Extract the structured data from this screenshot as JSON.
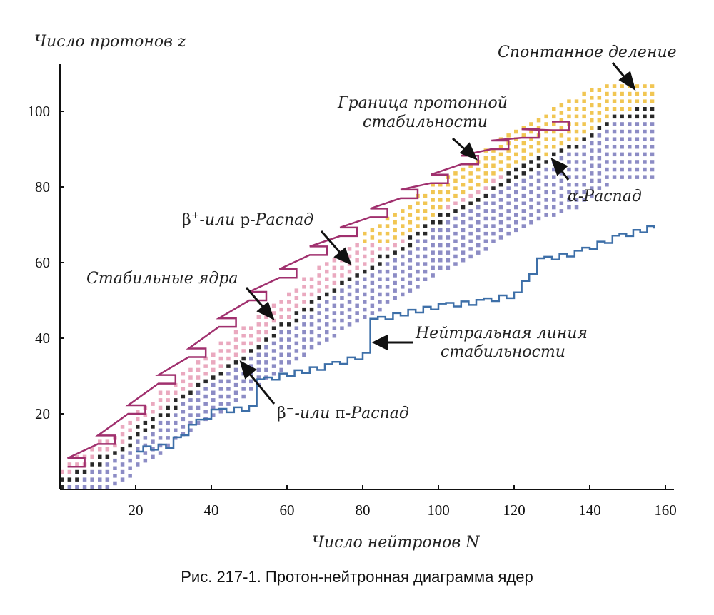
{
  "chart_data": {
    "type": "scatter",
    "title": "",
    "xlabel": "Число нейтронов N",
    "ylabel": "Число протонов z",
    "xlim": [
      0,
      160
    ],
    "ylim": [
      0,
      110
    ],
    "x_ticks": [
      "20",
      "40",
      "60",
      "80",
      "100",
      "120",
      "140",
      "160"
    ],
    "y_ticks": [
      "20",
      "40",
      "60",
      "80",
      "100"
    ],
    "grid": false,
    "colors": {
      "stable": "#111111",
      "beta_plus": "#e8a0b8",
      "beta_minus": "#7f7fbf",
      "alpha": "#f0c040",
      "proton_boundary": "#a0306e",
      "neutron_line": "#3d6fa8"
    },
    "regions": {
      "stable_nuclei": [
        [
          0,
          1
        ],
        [
          2,
          2
        ],
        [
          4,
          3
        ],
        [
          6,
          4
        ],
        [
          8,
          6
        ],
        [
          10,
          7
        ],
        [
          14,
          9
        ],
        [
          18,
          12
        ],
        [
          20,
          15
        ],
        [
          24,
          17
        ],
        [
          28,
          20
        ],
        [
          30,
          22
        ],
        [
          34,
          25
        ],
        [
          40,
          29
        ],
        [
          44,
          32
        ],
        [
          50,
          36
        ],
        [
          56,
          41
        ],
        [
          62,
          45
        ],
        [
          70,
          51
        ],
        [
          78,
          56
        ],
        [
          84,
          60
        ],
        [
          92,
          65
        ],
        [
          100,
          71
        ],
        [
          110,
          76
        ],
        [
          118,
          82
        ],
        [
          126,
          86
        ],
        [
          136,
          90
        ],
        [
          146,
          98
        ],
        [
          152,
          99
        ]
      ],
      "proton_stability_boundary": [
        [
          2,
          6
        ],
        [
          10,
          12
        ],
        [
          18,
          20
        ],
        [
          26,
          28
        ],
        [
          34,
          35
        ],
        [
          42,
          43
        ],
        [
          50,
          50
        ],
        [
          58,
          56
        ],
        [
          66,
          62
        ],
        [
          74,
          67
        ],
        [
          82,
          72
        ],
        [
          90,
          77
        ],
        [
          98,
          81
        ],
        [
          106,
          86
        ],
        [
          114,
          90
        ],
        [
          122,
          93
        ],
        [
          130,
          95
        ]
      ],
      "neutral_stability_line": [
        [
          20,
          10
        ],
        [
          28,
          11
        ],
        [
          34,
          16
        ],
        [
          40,
          20
        ],
        [
          50,
          21
        ],
        [
          52,
          28
        ],
        [
          60,
          30
        ],
        [
          70,
          32
        ],
        [
          80,
          35
        ],
        [
          82,
          44
        ],
        [
          90,
          46
        ],
        [
          100,
          48
        ],
        [
          110,
          49
        ],
        [
          120,
          51
        ],
        [
          126,
          60
        ],
        [
          136,
          62
        ],
        [
          146,
          66
        ],
        [
          157,
          69
        ]
      ]
    },
    "annotations": [
      "Спонтанное деление",
      "Граница протонной стабильности",
      "α-Распад",
      "β⁺-или p-Распад",
      "Стабильные ядра",
      "Нейтральная линия стабильности",
      "β⁻-или п-Распад"
    ]
  },
  "labels": {
    "ylabel": "Число протонов z",
    "xlabel": "Число нейтронов N",
    "spontaneous_fission": "Спонтанное деление",
    "proton_boundary_1": "Граница протонной",
    "proton_boundary_2": "стабильности",
    "alpha_decay": "α-Распад",
    "beta_plus_symbol": "β",
    "beta_plus_sup": "+",
    "beta_plus_text": "-или ",
    "beta_plus_p": "p",
    "beta_plus_end": "-Распад",
    "stable_nuclei": "Стабильные ядра",
    "neutral_line_1": "Нейтральная линия",
    "neutral_line_2": "стабильности",
    "beta_minus_symbol": "β",
    "beta_minus_sup": "−",
    "beta_minus_text": "-или ",
    "beta_minus_n": "п",
    "beta_minus_end": "-Распад"
  },
  "caption": "Рис. 217-1. Протон-нейтронная диаграмма ядер"
}
